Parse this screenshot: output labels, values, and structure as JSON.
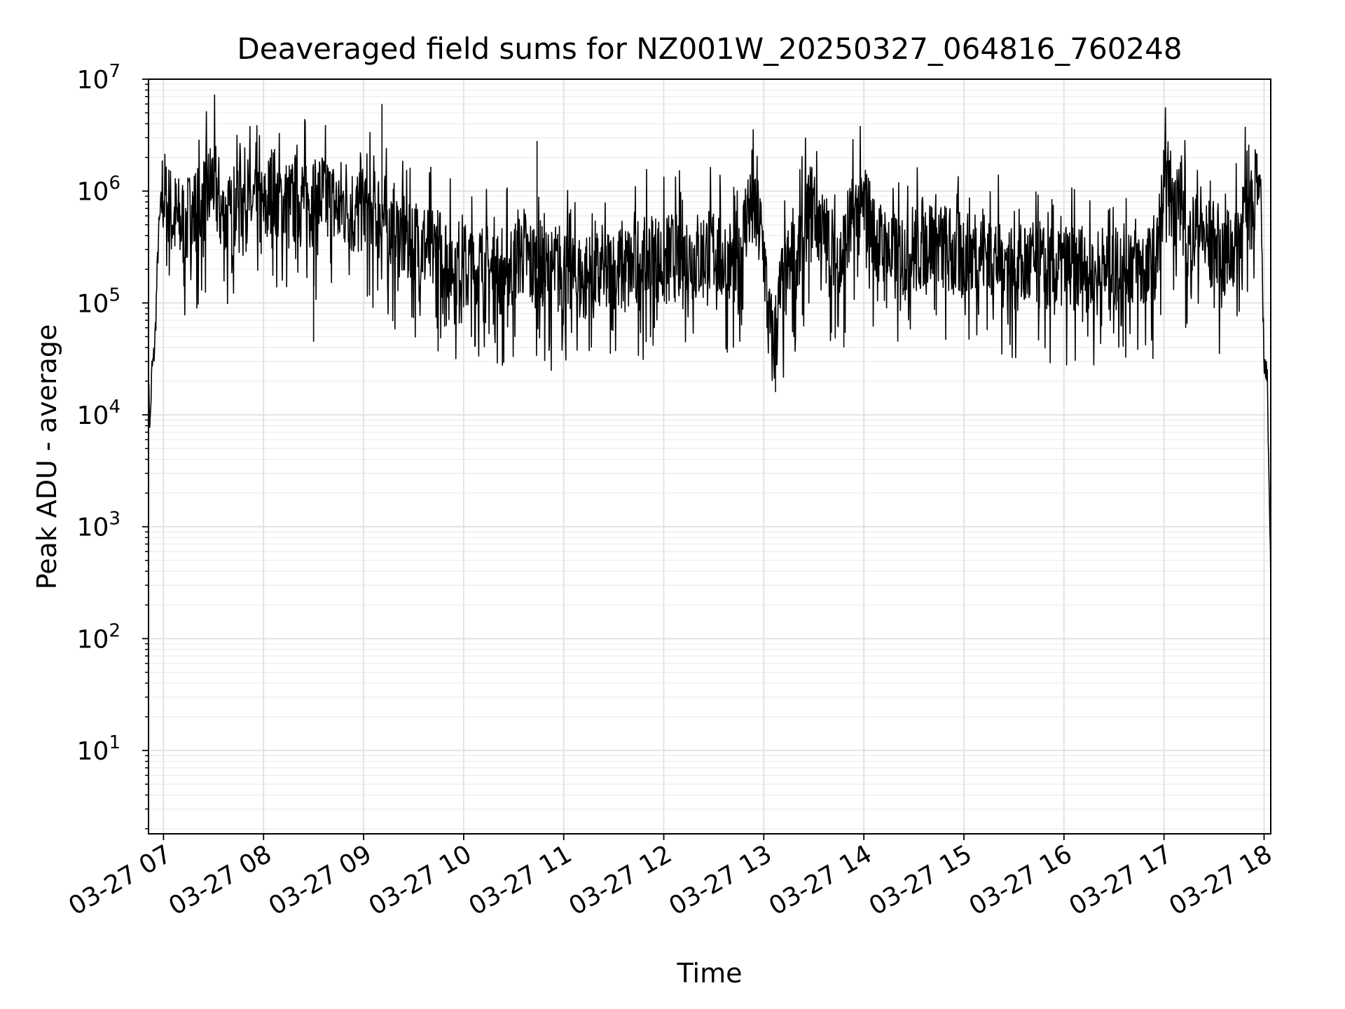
{
  "chart_data": {
    "type": "line",
    "title": "Deaveraged field sums for NZ001W_20250327_064816_760248",
    "xlabel": "Time",
    "ylabel": "Peak ADU - average",
    "yscale": "log",
    "ylim": [
      1.8,
      10000000
    ],
    "xlim": [
      "03-27 06:51",
      "03-27 18:04"
    ],
    "grid": "major and minor, light gray",
    "legend": "none",
    "line_color": "#000000",
    "x_ticks": [
      {
        "t": "03-27 07:00",
        "label": "03-27 07"
      },
      {
        "t": "03-27 08:00",
        "label": "03-27 08"
      },
      {
        "t": "03-27 09:00",
        "label": "03-27 09"
      },
      {
        "t": "03-27 10:00",
        "label": "03-27 10"
      },
      {
        "t": "03-27 11:00",
        "label": "03-27 11"
      },
      {
        "t": "03-27 12:00",
        "label": "03-27 12"
      },
      {
        "t": "03-27 13:00",
        "label": "03-27 13"
      },
      {
        "t": "03-27 14:00",
        "label": "03-27 14"
      },
      {
        "t": "03-27 15:00",
        "label": "03-27 15"
      },
      {
        "t": "03-27 16:00",
        "label": "03-27 16"
      },
      {
        "t": "03-27 17:00",
        "label": "03-27 17"
      },
      {
        "t": "03-27 18:00",
        "label": "03-27 18"
      }
    ],
    "y_ticks": [
      {
        "value": 10,
        "base": "10",
        "exp": "1"
      },
      {
        "value": 100,
        "base": "10",
        "exp": "2"
      },
      {
        "value": 1000,
        "base": "10",
        "exp": "3"
      },
      {
        "value": 10000,
        "base": "10",
        "exp": "4"
      },
      {
        "value": 100000,
        "base": "10",
        "exp": "5"
      },
      {
        "value": 1000000,
        "base": "10",
        "exp": "6"
      },
      {
        "value": 10000000,
        "base": "10",
        "exp": "7"
      }
    ],
    "series": [
      {
        "x": [
          "03-27 06:51",
          "03-27 06:52",
          "03-27 06:53",
          "03-27 06:54",
          "03-27 06:55",
          "03-27 06:56",
          "03-27 06:57",
          "03-27 06:59",
          "03-27 07:00",
          "03-27 07:02",
          "03-27 07:05",
          "03-27 07:10",
          "03-27 07:15",
          "03-27 07:20",
          "03-27 07:25",
          "03-27 07:30",
          "03-27 07:35",
          "03-27 07:40",
          "03-27 07:45",
          "03-27 07:50",
          "03-27 07:55",
          "03-27 08:00",
          "03-27 08:05",
          "03-27 08:10",
          "03-27 08:15",
          "03-27 08:20",
          "03-27 08:25",
          "03-27 08:30",
          "03-27 08:35",
          "03-27 08:40",
          "03-27 08:45",
          "03-27 08:50",
          "03-27 08:55",
          "03-27 09:00",
          "03-27 09:05",
          "03-27 09:10",
          "03-27 09:15",
          "03-27 09:20",
          "03-27 09:25",
          "03-27 09:30",
          "03-27 09:40",
          "03-27 09:50",
          "03-27 10:00",
          "03-27 10:10",
          "03-27 10:20",
          "03-27 10:30",
          "03-27 10:35",
          "03-27 10:40",
          "03-27 10:50",
          "03-27 11:00",
          "03-27 11:10",
          "03-27 11:20",
          "03-27 11:30",
          "03-27 11:40",
          "03-27 11:50",
          "03-27 12:00",
          "03-27 12:10",
          "03-27 12:20",
          "03-27 12:30",
          "03-27 12:35",
          "03-27 12:40",
          "03-27 12:45",
          "03-27 12:50",
          "03-27 12:55",
          "03-27 13:00",
          "03-27 13:03",
          "03-27 13:06",
          "03-27 13:10",
          "03-27 13:15",
          "03-27 13:20",
          "03-27 13:25",
          "03-27 13:30",
          "03-27 13:35",
          "03-27 13:40",
          "03-27 13:45",
          "03-27 13:50",
          "03-27 13:55",
          "03-27 14:00",
          "03-27 14:10",
          "03-27 14:20",
          "03-27 14:30",
          "03-27 14:40",
          "03-27 14:50",
          "03-27 15:00",
          "03-27 15:10",
          "03-27 15:20",
          "03-27 15:30",
          "03-27 15:40",
          "03-27 15:50",
          "03-27 16:00",
          "03-27 16:10",
          "03-27 16:20",
          "03-27 16:30",
          "03-27 16:40",
          "03-27 16:50",
          "03-27 16:55",
          "03-27 17:00",
          "03-27 17:05",
          "03-27 17:10",
          "03-27 17:15",
          "03-27 17:20",
          "03-27 17:25",
          "03-27 17:30",
          "03-27 17:35",
          "03-27 17:40",
          "03-27 17:45",
          "03-27 17:48",
          "03-27 17:52",
          "03-27 17:55",
          "03-27 17:58",
          "03-27 18:00",
          "03-27 18:01",
          "03-27 18:02",
          "03-27 18:03",
          "03-27 18:04"
        ],
        "y": [
          17000,
          8000,
          25000,
          30000,
          50000,
          150000,
          400000,
          900000,
          1000000,
          700000,
          600000,
          500000,
          550000,
          650000,
          800000,
          1300000,
          600000,
          500000,
          900000,
          800000,
          700000,
          600000,
          1000000,
          800000,
          700000,
          800000,
          900000,
          800000,
          900000,
          750000,
          700000,
          800000,
          600000,
          700000,
          600000,
          600000,
          500000,
          400000,
          400000,
          350000,
          300000,
          250000,
          200000,
          200000,
          180000,
          220000,
          300000,
          220000,
          180000,
          200000,
          160000,
          170000,
          180000,
          200000,
          250000,
          230000,
          260000,
          250000,
          300000,
          250000,
          220000,
          180000,
          700000,
          650000,
          300000,
          60000,
          40000,
          120000,
          200000,
          250000,
          500000,
          800000,
          400000,
          300000,
          200000,
          400000,
          600000,
          700000,
          300000,
          250000,
          300000,
          350000,
          280000,
          260000,
          300000,
          250000,
          200000,
          220000,
          180000,
          200000,
          200000,
          180000,
          200000,
          250000,
          180000,
          200000,
          1000000,
          900000,
          800000,
          300000,
          500000,
          350000,
          300000,
          250000,
          300000,
          400000,
          600000,
          900000,
          1100000,
          1000000,
          30000,
          25000,
          18000,
          3000,
          300
        ]
      }
    ],
    "spikes": [
      {
        "x": "03-27 09:11",
        "y": 6000000
      },
      {
        "x": "03-27 10:44",
        "y": 2800000
      },
      {
        "x": "03-27 08:30",
        "y": 45000
      },
      {
        "x": "03-27 13:07",
        "y": 16000
      },
      {
        "x": "03-27 13:48",
        "y": 40000
      }
    ]
  }
}
